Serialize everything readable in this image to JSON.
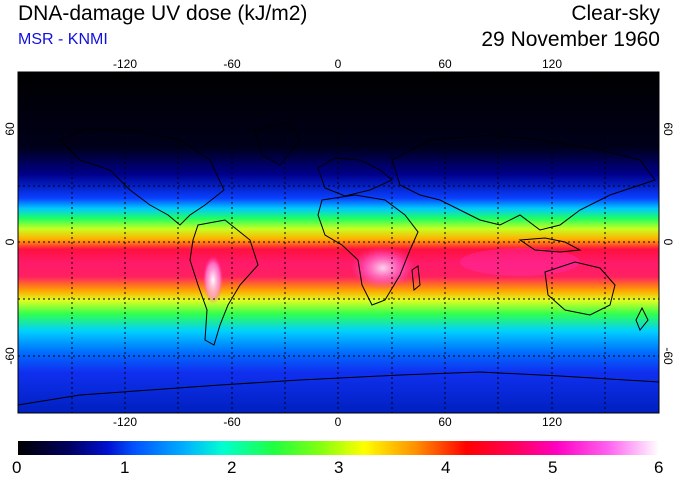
{
  "header": {
    "title": "DNA-damage UV dose (kJ/m2)",
    "subtitle": "MSR - KNMI",
    "mode": "Clear-sky",
    "date": "29 November 1960"
  },
  "colors": {
    "subtitle": "#1010e0"
  },
  "map": {
    "lon_ticks": [
      "-120",
      "-60",
      "0",
      "60",
      "120"
    ],
    "lat_ticks": [
      "60",
      "0",
      "-60"
    ],
    "lon_range": [
      -180,
      180
    ],
    "lat_range": [
      -90,
      90
    ]
  },
  "colorbar": {
    "labels": [
      "0",
      "1",
      "2",
      "3",
      "4",
      "5",
      "6"
    ],
    "range": [
      0,
      6
    ]
  }
}
